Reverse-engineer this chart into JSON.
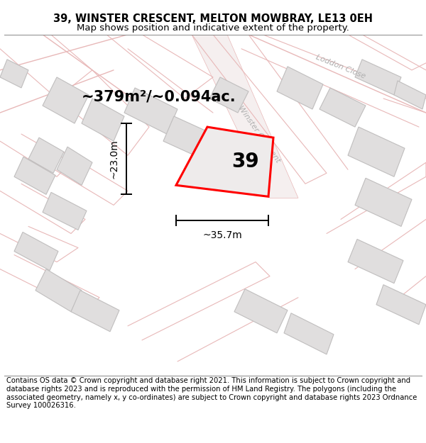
{
  "title": "39, WINSTER CRESCENT, MELTON MOWBRAY, LE13 0EH",
  "subtitle": "Map shows position and indicative extent of the property.",
  "area_label": "~379m²/~0.094ac.",
  "property_number": "39",
  "width_label": "~35.7m",
  "height_label": "~23.0m",
  "footer": "Contains OS data © Crown copyright and database right 2021. This information is subject to Crown copyright and database rights 2023 and is reproduced with the permission of HM Land Registry. The polygons (including the associated geometry, namely x, y co-ordinates) are subject to Crown copyright and database rights 2023 Ordnance Survey 100026316.",
  "map_bg": "#f7f5f5",
  "road_fill": "#f7f0f0",
  "road_edge": "#e8b8b8",
  "building_fill": "#e0dede",
  "building_edge": "#c0bebe",
  "plot_edge": "#ff0000",
  "plot_fill": "#eeebeb",
  "title_fontsize": 10.5,
  "subtitle_fontsize": 9.5,
  "area_fontsize": 15,
  "number_fontsize": 20,
  "measure_fontsize": 10,
  "footer_fontsize": 7.2,
  "street_label_color": "#b0b0b0",
  "street_label_fontsize": 8
}
